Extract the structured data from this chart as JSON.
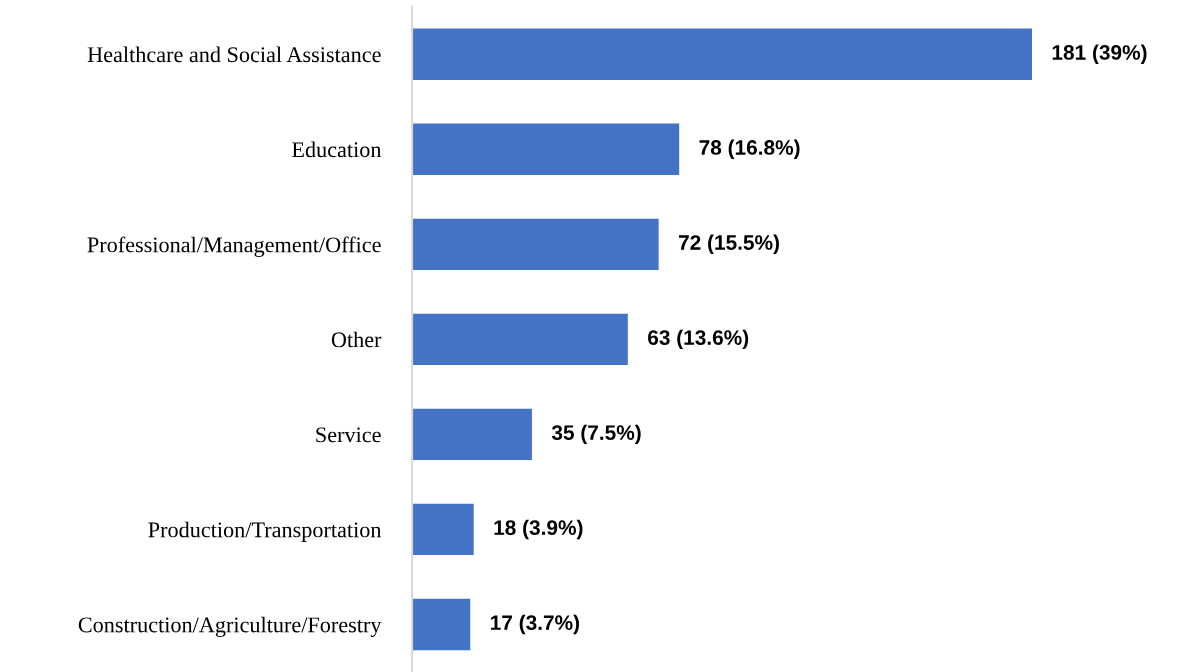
{
  "chart_data": {
    "type": "bar",
    "orientation": "horizontal",
    "categories": [
      "Healthcare and Social Assistance",
      "Education",
      "Professional/Management/Office",
      "Other",
      "Service",
      "Production/Transportation",
      "Construction/Agriculture/Forestry"
    ],
    "values": [
      181,
      78,
      72,
      63,
      35,
      18,
      17
    ],
    "value_labels": [
      "181 (39%)",
      "78 (16.8%)",
      "72 (15.5%)",
      "63 (13.6%)",
      "35 (7.5%)",
      "18 (3.9%)",
      "17 (3.7%)"
    ],
    "color": "#4472c4",
    "tick_labels": "y",
    "grid": false,
    "legend": false
  }
}
